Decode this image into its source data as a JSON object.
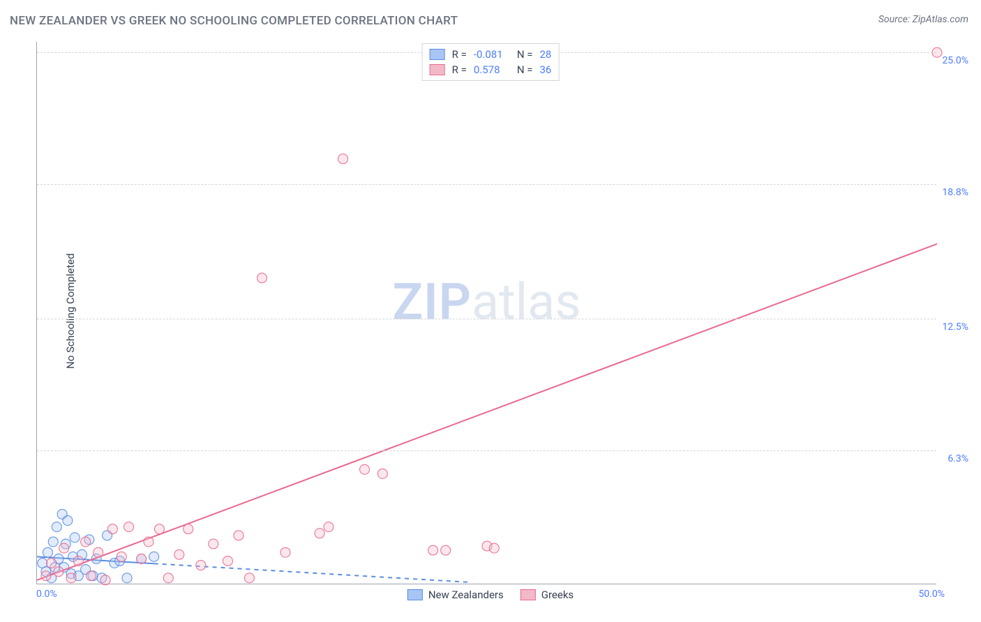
{
  "title": "NEW ZEALANDER VS GREEK NO SCHOOLING COMPLETED CORRELATION CHART",
  "source": "Source: ZipAtlas.com",
  "watermark": {
    "part1": "ZIP",
    "part2": "atlas"
  },
  "y_axis_label": "No Schooling Completed",
  "chart": {
    "type": "scatter",
    "xlim": [
      0,
      50
    ],
    "ylim": [
      0,
      25.5
    ],
    "x_ticks": [
      {
        "value": 0,
        "label": "0.0%"
      },
      {
        "value": 50,
        "label": "50.0%"
      }
    ],
    "y_ticks": [
      {
        "value": 6.3,
        "label": "6.3%"
      },
      {
        "value": 12.5,
        "label": "12.5%"
      },
      {
        "value": 18.8,
        "label": "18.8%"
      },
      {
        "value": 25.0,
        "label": "25.0%"
      }
    ],
    "grid_color": "#d1d5db",
    "background_color": "#ffffff",
    "marker_radius": 7,
    "marker_fill_opacity": 0.35,
    "series": [
      {
        "name": "New Zealanders",
        "color_fill": "#a9c5f5",
        "color_stroke": "#5a8de0",
        "R": "-0.081",
        "N": "28",
        "trend": {
          "from": [
            0,
            1.3
          ],
          "to": [
            24,
            0.1
          ],
          "style": "solid_then_dashed",
          "solid_until_x": 6.5,
          "width": 2
        },
        "points": [
          [
            0.3,
            1.0
          ],
          [
            0.5,
            0.6
          ],
          [
            0.6,
            1.5
          ],
          [
            0.8,
            0.3
          ],
          [
            0.9,
            2.0
          ],
          [
            1.0,
            0.8
          ],
          [
            1.1,
            2.7
          ],
          [
            1.2,
            1.2
          ],
          [
            1.4,
            3.3
          ],
          [
            1.5,
            0.8
          ],
          [
            1.6,
            1.9
          ],
          [
            1.7,
            3.0
          ],
          [
            1.9,
            0.5
          ],
          [
            2.0,
            1.3
          ],
          [
            2.1,
            2.2
          ],
          [
            2.3,
            0.4
          ],
          [
            2.5,
            1.4
          ],
          [
            2.7,
            0.7
          ],
          [
            2.9,
            2.1
          ],
          [
            3.1,
            0.4
          ],
          [
            3.3,
            1.2
          ],
          [
            3.6,
            0.3
          ],
          [
            3.9,
            2.3
          ],
          [
            4.3,
            1.0
          ],
          [
            4.6,
            1.1
          ],
          [
            5.0,
            0.3
          ],
          [
            5.8,
            1.2
          ],
          [
            6.5,
            1.3
          ]
        ]
      },
      {
        "name": "Greeks",
        "color_fill": "#f3b9c9",
        "color_stroke": "#e86a8f",
        "R": "0.578",
        "N": "36",
        "trend": {
          "from": [
            0,
            0.2
          ],
          "to": [
            50,
            16.0
          ],
          "style": "solid",
          "width": 2
        },
        "points": [
          [
            0.5,
            0.4
          ],
          [
            0.8,
            1.0
          ],
          [
            1.2,
            0.6
          ],
          [
            1.5,
            1.7
          ],
          [
            1.9,
            0.3
          ],
          [
            2.3,
            1.1
          ],
          [
            2.7,
            2.0
          ],
          [
            3.0,
            0.4
          ],
          [
            3.4,
            1.5
          ],
          [
            3.8,
            0.2
          ],
          [
            4.2,
            2.6
          ],
          [
            4.7,
            1.3
          ],
          [
            5.1,
            2.7
          ],
          [
            5.8,
            1.2
          ],
          [
            6.2,
            2.0
          ],
          [
            6.8,
            2.6
          ],
          [
            7.3,
            0.3
          ],
          [
            7.9,
            1.4
          ],
          [
            8.4,
            2.6
          ],
          [
            9.1,
            0.9
          ],
          [
            9.8,
            1.9
          ],
          [
            10.6,
            1.1
          ],
          [
            11.2,
            2.3
          ],
          [
            11.8,
            0.3
          ],
          [
            12.5,
            14.4
          ],
          [
            13.8,
            1.5
          ],
          [
            15.7,
            2.4
          ],
          [
            16.2,
            2.7
          ],
          [
            17.0,
            20.0
          ],
          [
            18.2,
            5.4
          ],
          [
            19.2,
            5.2
          ],
          [
            22.0,
            1.6
          ],
          [
            22.7,
            1.6
          ],
          [
            25.0,
            1.8
          ],
          [
            25.4,
            1.7
          ],
          [
            50.0,
            25.0
          ]
        ]
      }
    ]
  },
  "legend_top": {
    "rows": [
      {
        "swatch_fill": "#a9c5f5",
        "swatch_stroke": "#5a8de0",
        "r_label": "R =",
        "r_val": "-0.081",
        "n_label": "N =",
        "n_val": "28"
      },
      {
        "swatch_fill": "#f3b9c9",
        "swatch_stroke": "#e86a8f",
        "r_label": "R =",
        "r_val": " 0.578",
        "n_label": "N =",
        "n_val": "36"
      }
    ]
  },
  "legend_bottom": [
    {
      "swatch_fill": "#a9c5f5",
      "swatch_stroke": "#5a8de0",
      "label": "New Zealanders"
    },
    {
      "swatch_fill": "#f3b9c9",
      "swatch_stroke": "#e86a8f",
      "label": "Greeks"
    }
  ]
}
